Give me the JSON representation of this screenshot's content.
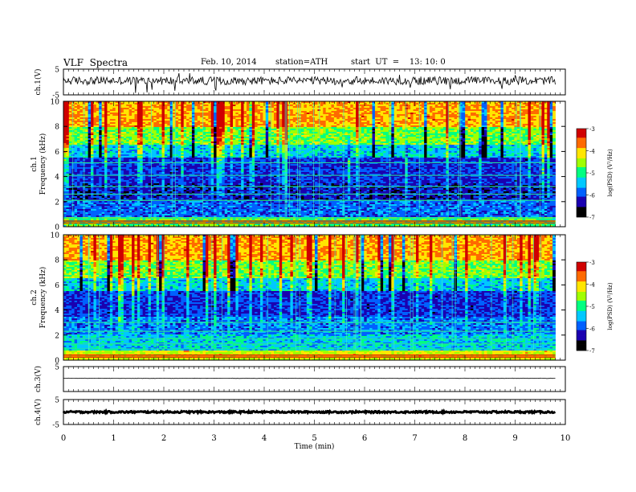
{
  "header": {
    "title": "VLF  Spectra",
    "date": "Feb. 10, 2014",
    "station": "station=ATH",
    "start": "start  UT  =    13: 10: 0"
  },
  "chart_data": {
    "type": "heatmap",
    "xlabel": "Time  (min)",
    "xlim": [
      0,
      10
    ],
    "xticks": [
      "0",
      "1",
      "2",
      "3",
      "4",
      "5",
      "6",
      "7",
      "8",
      "9",
      "10"
    ],
    "data_end_min": 9.8,
    "colormap": [
      "#000000",
      "#1a00b0",
      "#0060ff",
      "#00c8ff",
      "#00ff80",
      "#a0ff00",
      "#ffe600",
      "#ff6a00",
      "#d00000",
      "#ffffff"
    ],
    "panels": [
      {
        "id": "ch1-wave",
        "kind": "waveform",
        "ylabel": "ch.1(V)",
        "ylim": [
          -5,
          5
        ],
        "yticks": [
          "5",
          "-5"
        ],
        "noise": 1.6,
        "offset": 0.5,
        "spikes": true
      },
      {
        "id": "ch1-spec",
        "kind": "spectrogram",
        "ylabel": "ch.1\nFrequency  (kHz)",
        "ylim": [
          0,
          10
        ],
        "yticks": [
          "0",
          "2",
          "4",
          "6",
          "8",
          "10"
        ],
        "colorbar": {
          "label": "log(PSD) (V²/Hz)",
          "range": [
            -7,
            -3
          ],
          "ticks": [
            "-3",
            "-4",
            "-5",
            "-6",
            "-7"
          ]
        }
      },
      {
        "id": "ch2-spec",
        "kind": "spectrogram",
        "ylabel": "ch.2\nFrequency  (kHz)",
        "ylim": [
          0,
          10
        ],
        "yticks": [
          "0",
          "2",
          "4",
          "6",
          "8",
          "10"
        ],
        "colorbar": {
          "label": "log(PSD) (V²/Hz)",
          "range": [
            -7,
            -3
          ],
          "ticks": [
            "-3",
            "-4",
            "-5",
            "-6",
            "-7"
          ]
        }
      },
      {
        "id": "ch3-wave",
        "kind": "waveform",
        "ylabel": "ch.3(V)",
        "ylim": [
          -5,
          5
        ],
        "yticks": [
          "5"
        ],
        "noise": 0.08,
        "offset": 0.3,
        "spikes": false
      },
      {
        "id": "ch4-wave",
        "kind": "waveform",
        "ylabel": "ch.4(V)",
        "ylim": [
          -5,
          5
        ],
        "yticks": [
          "5",
          "-5"
        ],
        "noise": 0.35,
        "offset": 0.0,
        "spikes": false
      }
    ]
  }
}
